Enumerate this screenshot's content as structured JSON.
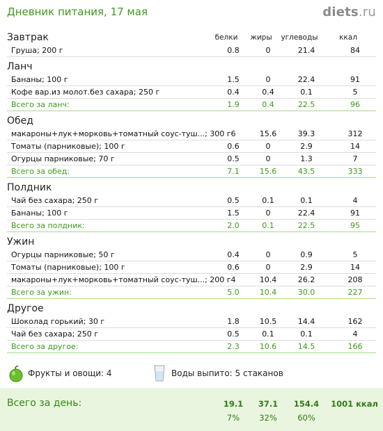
{
  "header": {
    "title": "Дневник питания, 17 мая",
    "brand_main": "diets",
    "brand_tld": ".ru"
  },
  "columns": {
    "protein": "белки",
    "fat": "жиры",
    "carbs": "углеводы",
    "kcal": "ккал"
  },
  "meals": {
    "breakfast": {
      "title": "Завтрак",
      "items": [
        {
          "name": "Груша; 200 г",
          "b": "0.8",
          "f": "0",
          "u": "21.4",
          "k": "84"
        }
      ]
    },
    "lunch": {
      "title": "Ланч",
      "items": [
        {
          "name": "Бананы; 100 г",
          "b": "1.5",
          "f": "0",
          "u": "22.4",
          "k": "91"
        },
        {
          "name": "Кофе вар.из молот.без сахара; 250 г",
          "b": "0.4",
          "f": "0.4",
          "u": "0.1",
          "k": "5"
        }
      ],
      "total": {
        "name": "Всего за ланч:",
        "b": "1.9",
        "f": "0.4",
        "u": "22.5",
        "k": "96"
      }
    },
    "dinner": {
      "title": "Обед",
      "items": [
        {
          "name": "макароны+лук+морковь+томатный соус-туш...; 300 г6",
          "b": "",
          "f": "15.6",
          "u": "39.3",
          "k": "312"
        },
        {
          "name": "Томаты (парниковые); 100 г",
          "b": "0.6",
          "f": "0",
          "u": "2.9",
          "k": "14"
        },
        {
          "name": "Огурцы парниковые; 70 г",
          "b": "0.5",
          "f": "0",
          "u": "1.3",
          "k": "7"
        }
      ],
      "total": {
        "name": "Всего за обед:",
        "b": "7.1",
        "f": "15.6",
        "u": "43.5",
        "k": "333"
      }
    },
    "snack": {
      "title": "Полдник",
      "items": [
        {
          "name": "Чай без сахара; 250 г",
          "b": "0.5",
          "f": "0.1",
          "u": "0.1",
          "k": "4"
        },
        {
          "name": "Бананы; 100 г",
          "b": "1.5",
          "f": "0",
          "u": "22.4",
          "k": "91"
        }
      ],
      "total": {
        "name": "Всего за полдник:",
        "b": "2.0",
        "f": "0.1",
        "u": "22.5",
        "k": "95"
      }
    },
    "supper": {
      "title": "Ужин",
      "items": [
        {
          "name": "Огурцы парниковые; 50 г",
          "b": "0.4",
          "f": "0",
          "u": "0.9",
          "k": "5"
        },
        {
          "name": "Томаты (парниковые); 100 г",
          "b": "0.6",
          "f": "0",
          "u": "2.9",
          "k": "14"
        },
        {
          "name": "макароны+лук+морковь+томатный соус-туш...; 200 г4",
          "b": "",
          "f": "10.4",
          "u": "26.2",
          "k": "208"
        }
      ],
      "total": {
        "name": "Всего за ужин:",
        "b": "5.0",
        "f": "10.4",
        "u": "30.0",
        "k": "227"
      }
    },
    "other": {
      "title": "Другое",
      "items": [
        {
          "name": "Шоколад горький; 30 г",
          "b": "1.8",
          "f": "10.5",
          "u": "14.4",
          "k": "162"
        },
        {
          "name": "Чай без сахара; 250 г",
          "b": "0.5",
          "f": "0.1",
          "u": "0.1",
          "k": "4"
        }
      ],
      "total": {
        "name": "Всего за другое:",
        "b": "2.3",
        "f": "10.6",
        "u": "14.5",
        "k": "166"
      }
    }
  },
  "extras": {
    "fruits": "Фрукты и овощи: 4",
    "water": "Воды выпито: 5 стаканов"
  },
  "day_total": {
    "label": "Всего за день:",
    "protein": "19.1",
    "fat": "37.1",
    "carbs": "154.4",
    "kcal": "1001 ккал",
    "protein_pct": "7%",
    "fat_pct": "32%",
    "carbs_pct": "60%"
  },
  "colors": {
    "accent_green": "#3e9a1e",
    "total_line": "#a8dc86",
    "day_bg": "#eaf5df"
  },
  "icons": [
    "apple-icon",
    "glass-icon"
  ]
}
